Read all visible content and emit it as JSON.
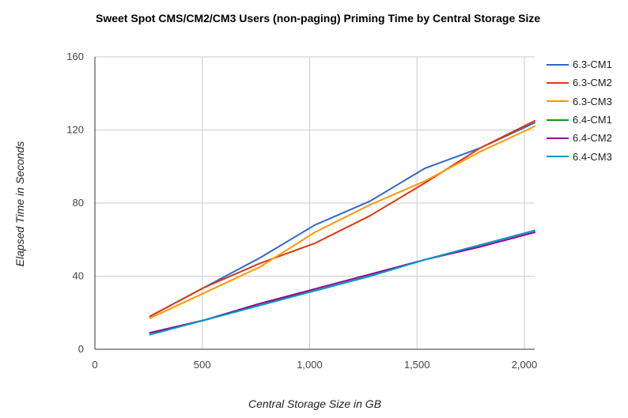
{
  "chart_data": {
    "type": "line",
    "title": "Sweet Spot CMS/CM2/CM3 Users (non-paging) Priming Time by Central Storage Size",
    "xlabel": "Central Storage Size in GB",
    "ylabel": "Elapsed Time in Seconds",
    "xlim": [
      0,
      2048
    ],
    "ylim": [
      0,
      160
    ],
    "x_ticks": [
      0,
      500,
      1000,
      1500,
      2000
    ],
    "x_tick_labels": [
      "0",
      "500",
      "1,000",
      "1,500",
      "2,000"
    ],
    "y_ticks": [
      0,
      40,
      80,
      120,
      160
    ],
    "y_tick_labels": [
      "0",
      "40",
      "80",
      "120",
      "160"
    ],
    "grid": true,
    "legend_position": "right",
    "x": [
      256,
      512,
      768,
      1024,
      1280,
      1536,
      1792,
      2048
    ],
    "series": [
      {
        "name": "6.3-CM1",
        "color": "#3366cc",
        "values": [
          18,
          34,
          50,
          68,
          81,
          99,
          110,
          124
        ]
      },
      {
        "name": "6.3-CM2",
        "color": "#dc3912",
        "values": [
          18,
          34,
          47,
          58,
          73,
          91,
          110,
          125
        ]
      },
      {
        "name": "6.3-CM3",
        "color": "#ff9900",
        "values": [
          17,
          31,
          45,
          64,
          79,
          92,
          108,
          122
        ]
      },
      {
        "name": "6.4-CM1",
        "color": "#109618",
        "values": [
          9,
          16,
          25,
          32,
          40,
          49,
          57,
          65
        ]
      },
      {
        "name": "6.4-CM2",
        "color": "#990099",
        "values": [
          9,
          16,
          25,
          33,
          41,
          49,
          56,
          64
        ]
      },
      {
        "name": "6.4-CM3",
        "color": "#0099c6",
        "values": [
          8,
          16,
          24,
          32,
          40,
          49,
          57,
          65
        ]
      }
    ]
  }
}
